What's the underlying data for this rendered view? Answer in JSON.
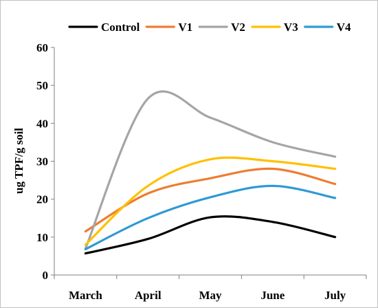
{
  "chart_data": {
    "type": "line",
    "categories": [
      "March",
      "April",
      "May",
      "June",
      "July"
    ],
    "ylabel": "ug TPF/g soil",
    "ylim": [
      0,
      60
    ],
    "yticks": [
      0,
      10,
      20,
      30,
      40,
      50,
      60
    ],
    "grid": false,
    "legend_position": "top",
    "series": [
      {
        "name": "Control",
        "color": "#000000",
        "values": [
          5.7,
          9.5,
          15.2,
          14.0,
          10.0
        ]
      },
      {
        "name": "V1",
        "color": "#ED7D31",
        "values": [
          11.5,
          21.5,
          25.5,
          28.0,
          24.0
        ]
      },
      {
        "name": "V2",
        "color": "#A5A5A5",
        "values": [
          7.0,
          46.5,
          41.5,
          35.0,
          31.2
        ]
      },
      {
        "name": "V3",
        "color": "#FFC000",
        "values": [
          8.0,
          23.5,
          30.5,
          30.0,
          28.0
        ]
      },
      {
        "name": "V4",
        "color": "#2E9AD6",
        "values": [
          6.8,
          15.0,
          20.5,
          23.5,
          20.3
        ]
      }
    ]
  }
}
